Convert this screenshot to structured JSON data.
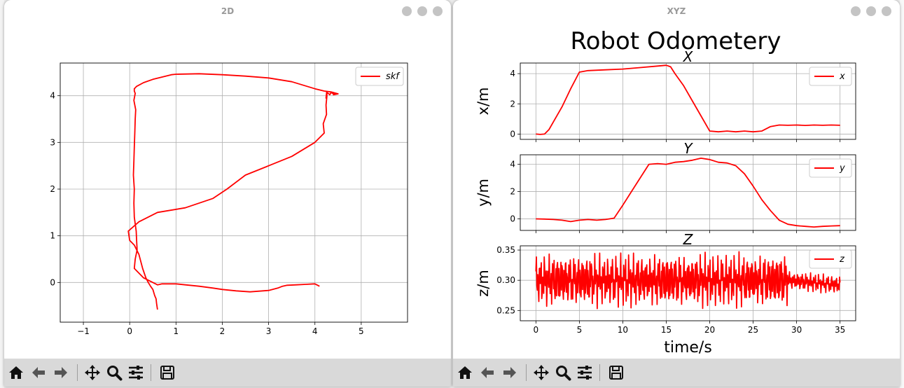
{
  "windows": {
    "left_title": "2D",
    "right_title": "XYZ"
  },
  "toolbar": {
    "items": [
      "home-icon",
      "back-icon",
      "forward-icon",
      "pan-icon",
      "zoom-icon",
      "configure-subplots-icon",
      "save-icon"
    ]
  },
  "colors": {
    "series": "#ff0000",
    "grid": "#b0b0b0"
  },
  "chart_data": [
    {
      "type": "line",
      "title": "",
      "xlabel": "",
      "ylabel": "",
      "xlim": [
        -1.5,
        6.0
      ],
      "ylim": [
        -0.85,
        4.7
      ],
      "xticks": [
        -1,
        0,
        1,
        2,
        3,
        4,
        5
      ],
      "yticks": [
        0,
        1,
        2,
        3,
        4
      ],
      "grid": true,
      "legend": "upper-right",
      "series": [
        {
          "name": "skf",
          "x": [
            0.6,
            0.58,
            0.57,
            0.54,
            0.5,
            0.45,
            0.4,
            0.35,
            0.28,
            0.2,
            0.1,
            0.0,
            -0.03,
            0.2,
            0.6,
            1.2,
            1.8,
            2.1,
            2.5,
            3.0,
            3.5,
            4.0,
            4.2,
            4.18,
            4.25,
            4.24,
            4.26,
            4.25,
            4.24,
            4.26,
            4.25,
            4.27,
            4.3,
            4.32,
            4.35,
            4.38,
            4.42,
            4.45,
            4.4,
            4.5,
            4.35,
            4.2,
            4.0,
            3.5,
            3.0,
            2.5,
            2.0,
            1.5,
            1.0,
            0.9,
            0.5,
            0.3,
            0.15,
            0.1,
            0.1,
            0.12,
            0.09,
            0.13,
            0.12,
            0.11,
            0.1,
            0.09,
            0.08,
            0.1,
            0.09,
            0.1,
            0.14,
            0.15,
            0.16,
            0.12,
            0.1,
            0.3,
            0.6,
            0.7,
            1.0,
            1.2,
            1.5,
            1.8,
            2.0,
            2.3,
            2.6,
            3.0,
            3.2,
            3.3,
            3.4,
            3.6,
            3.8,
            4.0,
            4.1
          ],
          "y": [
            -0.58,
            -0.45,
            -0.35,
            -0.28,
            -0.15,
            -0.08,
            0.0,
            0.1,
            0.3,
            0.6,
            0.8,
            0.9,
            1.1,
            1.3,
            1.5,
            1.6,
            1.8,
            2.0,
            2.3,
            2.5,
            2.7,
            3.0,
            3.2,
            3.4,
            3.6,
            3.8,
            4.0,
            4.05,
            3.95,
            4.03,
            4.08,
            4.06,
            4.04,
            4.02,
            4.07,
            4.05,
            4.03,
            4.05,
            4.02,
            4.04,
            4.08,
            4.1,
            4.15,
            4.3,
            4.38,
            4.42,
            4.45,
            4.47,
            4.46,
            4.45,
            4.35,
            4.28,
            4.2,
            4.15,
            4.1,
            4.05,
            3.9,
            3.7,
            3.5,
            3.2,
            2.9,
            2.6,
            2.3,
            2.0,
            1.7,
            1.4,
            1.1,
            0.9,
            0.7,
            0.5,
            0.3,
            0.1,
            -0.05,
            -0.03,
            -0.03,
            -0.05,
            -0.08,
            -0.12,
            -0.15,
            -0.18,
            -0.2,
            -0.17,
            -0.12,
            -0.08,
            -0.06,
            -0.05,
            -0.04,
            -0.03,
            -0.08
          ]
        }
      ]
    },
    {
      "type": "line",
      "suptitle": "Robot Odometery",
      "title": "X",
      "xlabel": "",
      "ylabel": "x/m",
      "xlim": [
        -1.8,
        36.8
      ],
      "ylim": [
        -0.35,
        4.7
      ],
      "xticks": [
        0,
        5,
        10,
        15,
        20,
        25,
        30,
        35
      ],
      "yticks": [
        0,
        2,
        4
      ],
      "grid": true,
      "legend": "upper-right",
      "series": [
        {
          "name": "x",
          "t": [
            0,
            0.5,
            1,
            1.5,
            2,
            3,
            4,
            5,
            6,
            8,
            10,
            12,
            14,
            15,
            15.5,
            16,
            17,
            18,
            19,
            20,
            21,
            22,
            23,
            24,
            25,
            26,
            27,
            28,
            29,
            30,
            31,
            32,
            33,
            34,
            35
          ],
          "values": [
            0.0,
            -0.02,
            0.0,
            0.3,
            0.8,
            1.8,
            3.0,
            4.1,
            4.2,
            4.25,
            4.3,
            4.4,
            4.5,
            4.55,
            4.45,
            4.0,
            3.2,
            2.2,
            1.2,
            0.2,
            0.15,
            0.2,
            0.15,
            0.2,
            0.15,
            0.2,
            0.5,
            0.6,
            0.58,
            0.6,
            0.57,
            0.6,
            0.58,
            0.6,
            0.58
          ]
        }
      ]
    },
    {
      "type": "line",
      "title": "Y",
      "xlabel": "",
      "ylabel": "y/m",
      "xlim": [
        -1.8,
        36.8
      ],
      "ylim": [
        -0.85,
        4.7
      ],
      "xticks": [
        0,
        5,
        10,
        15,
        20,
        25,
        30,
        35
      ],
      "yticks": [
        0,
        2,
        4
      ],
      "grid": true,
      "legend": "upper-right",
      "series": [
        {
          "name": "y",
          "t": [
            0,
            1,
            2,
            3,
            4,
            5,
            6,
            7,
            8,
            9,
            10,
            11,
            12,
            13,
            14,
            15,
            16,
            17,
            18,
            19,
            20,
            21,
            22,
            23,
            24,
            25,
            26,
            27,
            28,
            29,
            30,
            31,
            32,
            33,
            34,
            35
          ],
          "values": [
            0.0,
            -0.02,
            -0.05,
            -0.1,
            -0.2,
            -0.1,
            -0.05,
            -0.1,
            -0.05,
            0.05,
            1.0,
            2.0,
            3.0,
            4.0,
            4.05,
            4.0,
            4.15,
            4.2,
            4.3,
            4.45,
            4.35,
            4.15,
            4.1,
            3.9,
            3.3,
            2.4,
            1.4,
            0.6,
            -0.1,
            -0.4,
            -0.5,
            -0.55,
            -0.6,
            -0.55,
            -0.52,
            -0.5
          ]
        }
      ]
    },
    {
      "type": "line",
      "title": "Z",
      "xlabel": "time/s",
      "ylabel": "z/m",
      "xlim": [
        -1.8,
        36.8
      ],
      "ylim": [
        0.233,
        0.357
      ],
      "xticks": [
        0,
        5,
        10,
        15,
        20,
        25,
        30,
        35
      ],
      "yticks": [
        0.25,
        0.3,
        0.35
      ],
      "grid": true,
      "legend": "upper-right",
      "series": [
        {
          "name": "z",
          "t_start": 0,
          "t_end": 35,
          "center": 0.3,
          "amplitude_approx": 0.045,
          "note_values": [
            0.3,
            0.31,
            0.29,
            0.33,
            0.27,
            0.34,
            0.26,
            0.32,
            0.3,
            0.28,
            0.33,
            0.25,
            0.34,
            0.3,
            0.27,
            0.32,
            0.29,
            0.31,
            0.28,
            0.33,
            0.26,
            0.35,
            0.27,
            0.31,
            0.29,
            0.3,
            0.28,
            0.29
          ]
        }
      ]
    }
  ]
}
